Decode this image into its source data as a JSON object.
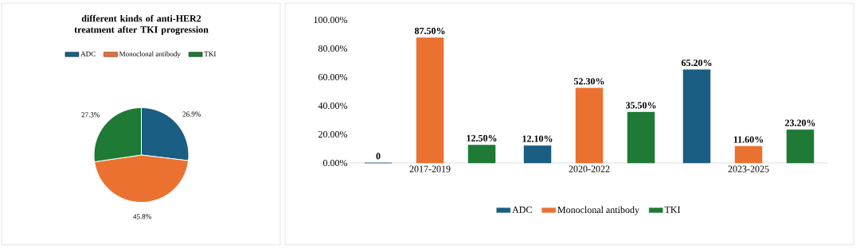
{
  "chart_data": [
    {
      "type": "pie",
      "title": "different kinds of anti-HER2 treatment after TKI progression",
      "categories": [
        "ADC",
        "Monoclonal antibody",
        "TKI"
      ],
      "values": [
        26.9,
        45.8,
        27.3
      ],
      "colors": [
        "#1a5e84",
        "#eb7131",
        "#1e7a34"
      ],
      "value_labels": [
        "26.9%",
        "45.8%",
        "27.3%"
      ],
      "legend": "top"
    },
    {
      "type": "bar",
      "categories": [
        "2017-2019",
        "2020-2022",
        "2023-2025"
      ],
      "series": [
        {
          "name": "ADC",
          "color": "#1a5e84",
          "values": [
            0,
            12.1,
            65.2
          ],
          "value_labels": [
            "0",
            "12.10%",
            "65.20%"
          ]
        },
        {
          "name": "Monoclonal antibody",
          "color": "#eb7131",
          "values": [
            87.5,
            52.3,
            11.6
          ],
          "value_labels": [
            "87.50%",
            "52.30%",
            "11.60%"
          ]
        },
        {
          "name": "TKI",
          "color": "#1e7a34",
          "values": [
            12.5,
            35.5,
            23.2
          ],
          "value_labels": [
            "12.50%",
            "35.50%",
            "23.20%"
          ]
        }
      ],
      "ylim": [
        0,
        100
      ],
      "yticks": [
        {
          "value": 0,
          "label": "0.00%"
        },
        {
          "value": 20,
          "label": "20.00%"
        },
        {
          "value": 40,
          "label": "40.00%"
        },
        {
          "value": 60,
          "label": "60.00%"
        },
        {
          "value": 80,
          "label": "80.00%"
        },
        {
          "value": 100,
          "label": "100.00%"
        }
      ],
      "legend": "bottom"
    }
  ]
}
